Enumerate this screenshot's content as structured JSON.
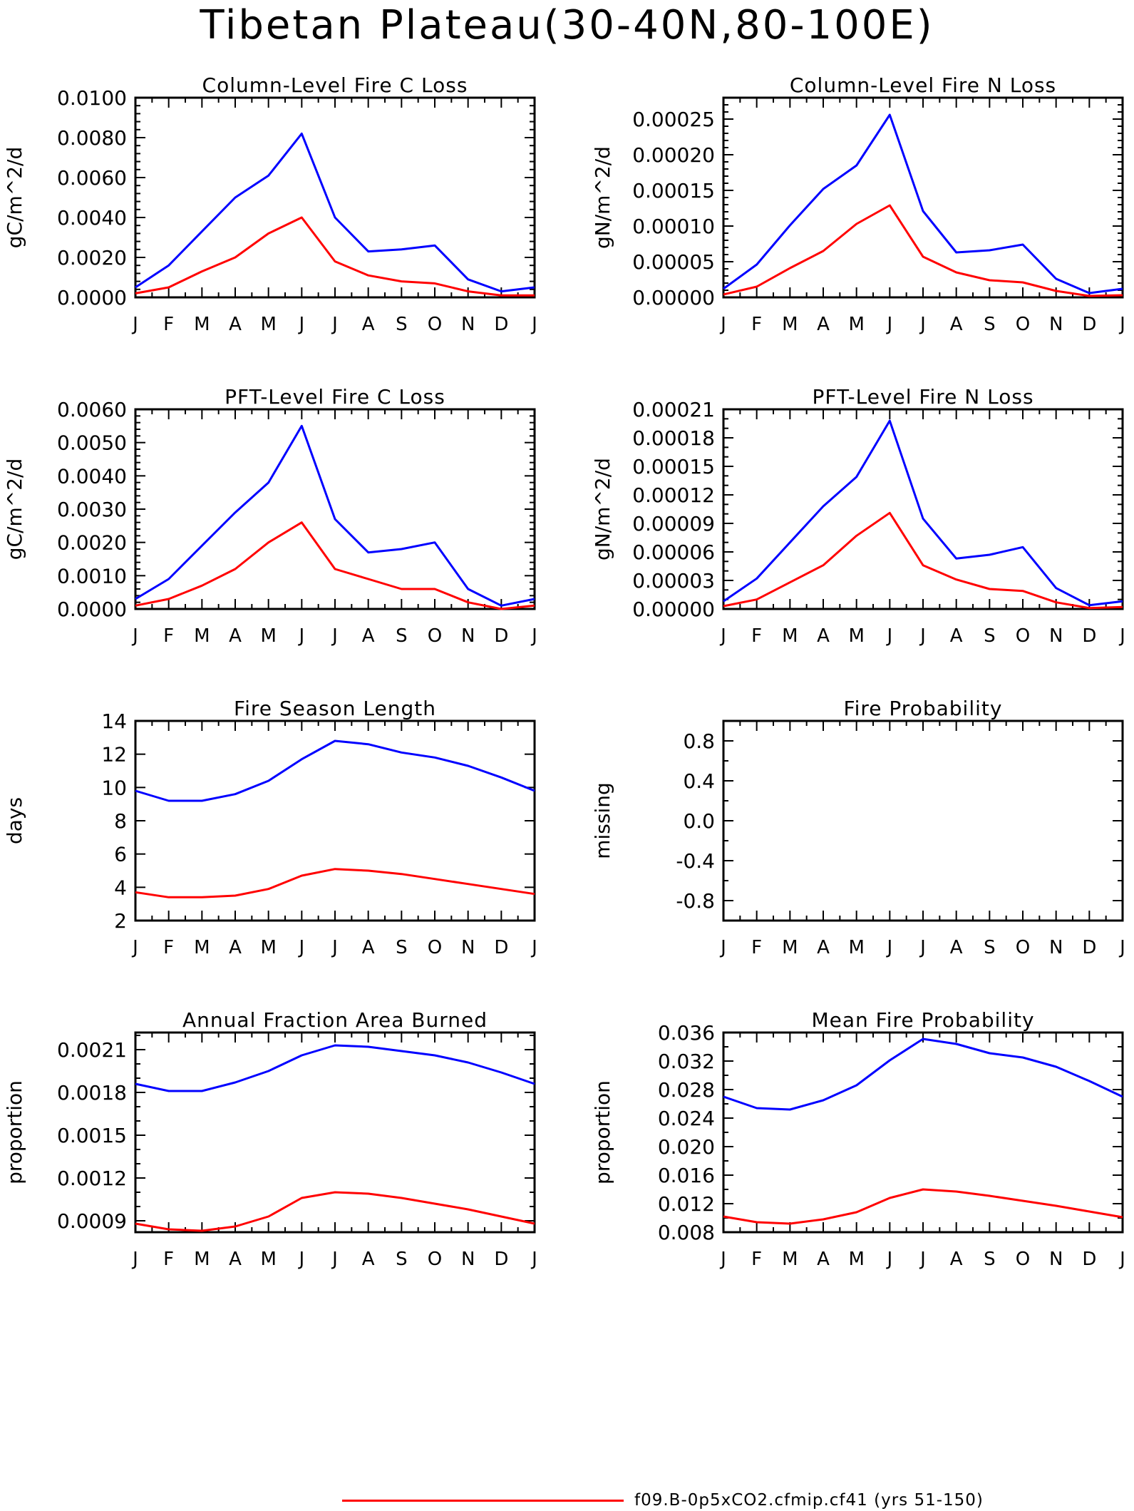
{
  "figure": {
    "title": "Tibetan Plateau(30-40N,80-100E)",
    "legend": [
      {
        "label": "f09.B-0p5xCO2.cfmip.cf41 (yrs 51-150)",
        "color": "#ff0000"
      }
    ]
  },
  "colors": {
    "blue": "#0000ff",
    "red": "#ff0000",
    "frame": "#000000"
  },
  "chart_data": [
    {
      "type": "line",
      "title": "Column-Level Fire C Loss",
      "ylabel": "gC/m^2/d",
      "x": [
        "J",
        "F",
        "M",
        "A",
        "M",
        "J",
        "J",
        "A",
        "S",
        "O",
        "N",
        "D",
        "J"
      ],
      "ylim": [
        0,
        0.01
      ],
      "yticks": [
        "0.0000",
        "0.0020",
        "0.0040",
        "0.0060",
        "0.0080",
        "0.0100"
      ],
      "yminor": 4,
      "series": [
        {
          "color": "#0000ff",
          "values": [
            0.0005,
            0.0016,
            0.0033,
            0.005,
            0.0061,
            0.0082,
            0.004,
            0.0023,
            0.0024,
            0.0026,
            0.0009,
            0.0003,
            0.0005
          ]
        },
        {
          "color": "#ff0000",
          "values": [
            0.0002,
            0.0005,
            0.0013,
            0.002,
            0.0032,
            0.004,
            0.0018,
            0.0011,
            0.0008,
            0.0007,
            0.0003,
            0.0001,
            0.0001
          ]
        }
      ]
    },
    {
      "type": "line",
      "title": "Column-Level Fire N Loss",
      "ylabel": "gN/m^2/d",
      "x": [
        "J",
        "F",
        "M",
        "A",
        "M",
        "J",
        "J",
        "A",
        "S",
        "O",
        "N",
        "D",
        "J"
      ],
      "ylim": [
        0,
        0.00028
      ],
      "yticks": [
        "0.00000",
        "0.00005",
        "0.00010",
        "0.00015",
        "0.00020",
        "0.00025"
      ],
      "yminor": 4,
      "series": [
        {
          "color": "#0000ff",
          "values": [
            1.2e-05,
            4.6e-05,
            0.000101,
            0.000152,
            0.000185,
            0.000256,
            0.000121,
            6.3e-05,
            6.6e-05,
            7.4e-05,
            2.6e-05,
            6e-06,
            1.2e-05
          ]
        },
        {
          "color": "#ff0000",
          "values": [
            4e-06,
            1.5e-05,
            4.1e-05,
            6.5e-05,
            0.000103,
            0.000129,
            5.7e-05,
            3.5e-05,
            2.4e-05,
            2.1e-05,
            9e-06,
            2e-06,
            3e-06
          ]
        }
      ]
    },
    {
      "type": "line",
      "title": "PFT-Level Fire C Loss",
      "ylabel": "gC/m^2/d",
      "x": [
        "J",
        "F",
        "M",
        "A",
        "M",
        "J",
        "J",
        "A",
        "S",
        "O",
        "N",
        "D",
        "J"
      ],
      "ylim": [
        0,
        0.006
      ],
      "yticks": [
        "0.0000",
        "0.0010",
        "0.0020",
        "0.0030",
        "0.0040",
        "0.0050",
        "0.0060"
      ],
      "yminor": 4,
      "series": [
        {
          "color": "#0000ff",
          "values": [
            0.0003,
            0.0009,
            0.0019,
            0.0029,
            0.0038,
            0.0055,
            0.0027,
            0.0017,
            0.0018,
            0.002,
            0.0006,
            0.0001,
            0.0003
          ]
        },
        {
          "color": "#ff0000",
          "values": [
            0.0001,
            0.0003,
            0.0007,
            0.0012,
            0.002,
            0.0026,
            0.0012,
            0.0009,
            0.0006,
            0.0006,
            0.0002,
            0.0,
            0.0001
          ]
        }
      ]
    },
    {
      "type": "line",
      "title": "PFT-Level Fire N Loss",
      "ylabel": "gN/m^2/d",
      "x": [
        "J",
        "F",
        "M",
        "A",
        "M",
        "J",
        "J",
        "A",
        "S",
        "O",
        "N",
        "D",
        "J"
      ],
      "ylim": [
        0,
        0.00021
      ],
      "yticks": [
        "0.00000",
        "0.00003",
        "0.00006",
        "0.00009",
        "0.00012",
        "0.00015",
        "0.00018",
        "0.00021"
      ],
      "yminor": 2,
      "series": [
        {
          "color": "#0000ff",
          "values": [
            8e-06,
            3.2e-05,
            7e-05,
            0.000108,
            0.000139,
            0.000198,
            9.5e-05,
            5.3e-05,
            5.7e-05,
            6.5e-05,
            2.2e-05,
            4e-06,
            8e-06
          ]
        },
        {
          "color": "#ff0000",
          "values": [
            3e-06,
            1e-05,
            2.8e-05,
            4.6e-05,
            7.7e-05,
            0.000101,
            4.6e-05,
            3.1e-05,
            2.1e-05,
            1.9e-05,
            7e-06,
            1e-06,
            2e-06
          ]
        }
      ]
    },
    {
      "type": "line",
      "title": "Fire Season Length",
      "ylabel": "days",
      "x": [
        "J",
        "F",
        "M",
        "A",
        "M",
        "J",
        "J",
        "A",
        "S",
        "O",
        "N",
        "D",
        "J"
      ],
      "ylim": [
        2,
        14
      ],
      "yticks": [
        "2",
        "4",
        "6",
        "8",
        "10",
        "12",
        "14"
      ],
      "yminor": 0,
      "series": [
        {
          "color": "#0000ff",
          "values": [
            9.8,
            9.2,
            9.2,
            9.6,
            10.4,
            11.7,
            12.8,
            12.6,
            12.1,
            11.8,
            11.3,
            10.6,
            9.8
          ]
        },
        {
          "color": "#ff0000",
          "values": [
            3.7,
            3.4,
            3.4,
            3.5,
            3.9,
            4.7,
            5.1,
            5.0,
            4.8,
            4.5,
            4.2,
            3.9,
            3.6
          ]
        }
      ]
    },
    {
      "type": "line",
      "title": "Fire Probability",
      "ylabel": "missing",
      "x": [
        "J",
        "F",
        "M",
        "A",
        "M",
        "J",
        "J",
        "A",
        "S",
        "O",
        "N",
        "D",
        "J"
      ],
      "ylim": [
        -1,
        1
      ],
      "yticks": [
        "-0.8",
        "-0.4",
        "0.0",
        "0.4",
        "0.8"
      ],
      "yminor": 1,
      "series": []
    },
    {
      "type": "line",
      "title": "Annual Fraction Area Burned",
      "ylabel": "proportion",
      "x": [
        "J",
        "F",
        "M",
        "A",
        "M",
        "J",
        "J",
        "A",
        "S",
        "O",
        "N",
        "D",
        "J"
      ],
      "ylim": [
        0.00082,
        0.00222
      ],
      "yticks": [
        "0.0009",
        "0.0012",
        "0.0015",
        "0.0018",
        "0.0021"
      ],
      "yminor": 2,
      "series": [
        {
          "color": "#0000ff",
          "values": [
            0.00186,
            0.00181,
            0.00181,
            0.00187,
            0.00195,
            0.00206,
            0.00213,
            0.00212,
            0.00209,
            0.00206,
            0.00201,
            0.00194,
            0.00186
          ]
        },
        {
          "color": "#ff0000",
          "values": [
            0.00088,
            0.00084,
            0.00083,
            0.00086,
            0.00093,
            0.00106,
            0.0011,
            0.00109,
            0.00106,
            0.00102,
            0.00098,
            0.00093,
            0.00088
          ]
        }
      ]
    },
    {
      "type": "line",
      "title": "Mean Fire Probability",
      "ylabel": "proportion",
      "x": [
        "J",
        "F",
        "M",
        "A",
        "M",
        "J",
        "J",
        "A",
        "S",
        "O",
        "N",
        "D",
        "J"
      ],
      "ylim": [
        0.008,
        0.036
      ],
      "yticks": [
        "0.008",
        "0.012",
        "0.016",
        "0.020",
        "0.024",
        "0.028",
        "0.032",
        "0.036"
      ],
      "yminor": 1,
      "series": [
        {
          "color": "#0000ff",
          "values": [
            0.027,
            0.0254,
            0.0252,
            0.0265,
            0.0286,
            0.0321,
            0.0351,
            0.0344,
            0.0331,
            0.0325,
            0.0312,
            0.0292,
            0.027
          ]
        },
        {
          "color": "#ff0000",
          "values": [
            0.0102,
            0.0094,
            0.0092,
            0.0098,
            0.0108,
            0.0128,
            0.014,
            0.0137,
            0.0131,
            0.0124,
            0.0117,
            0.0109,
            0.0101
          ]
        }
      ]
    }
  ]
}
